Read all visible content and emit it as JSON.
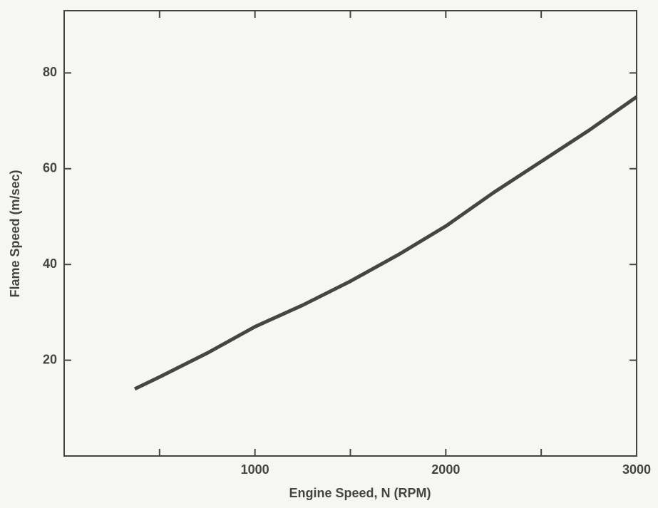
{
  "chart_data": {
    "type": "line",
    "x_label": "Engine Speed, N (RPM)",
    "y_label": "Flame Speed (m/sec)",
    "x": [
      370,
      500,
      750,
      1000,
      1250,
      1500,
      1750,
      2000,
      2250,
      2500,
      2750,
      3000
    ],
    "values": [
      14,
      16.5,
      21.5,
      27,
      31.5,
      36.5,
      42,
      48,
      55,
      61.5,
      68,
      75
    ],
    "color": "#454545",
    "xlim": [
      0,
      3000
    ],
    "xticks": [
      1000,
      2000,
      3000
    ],
    "x_minor_ticks": [
      500,
      1500,
      2500
    ],
    "ylim": [
      0,
      93
    ],
    "yticks": [
      20,
      40,
      60,
      80
    ]
  }
}
